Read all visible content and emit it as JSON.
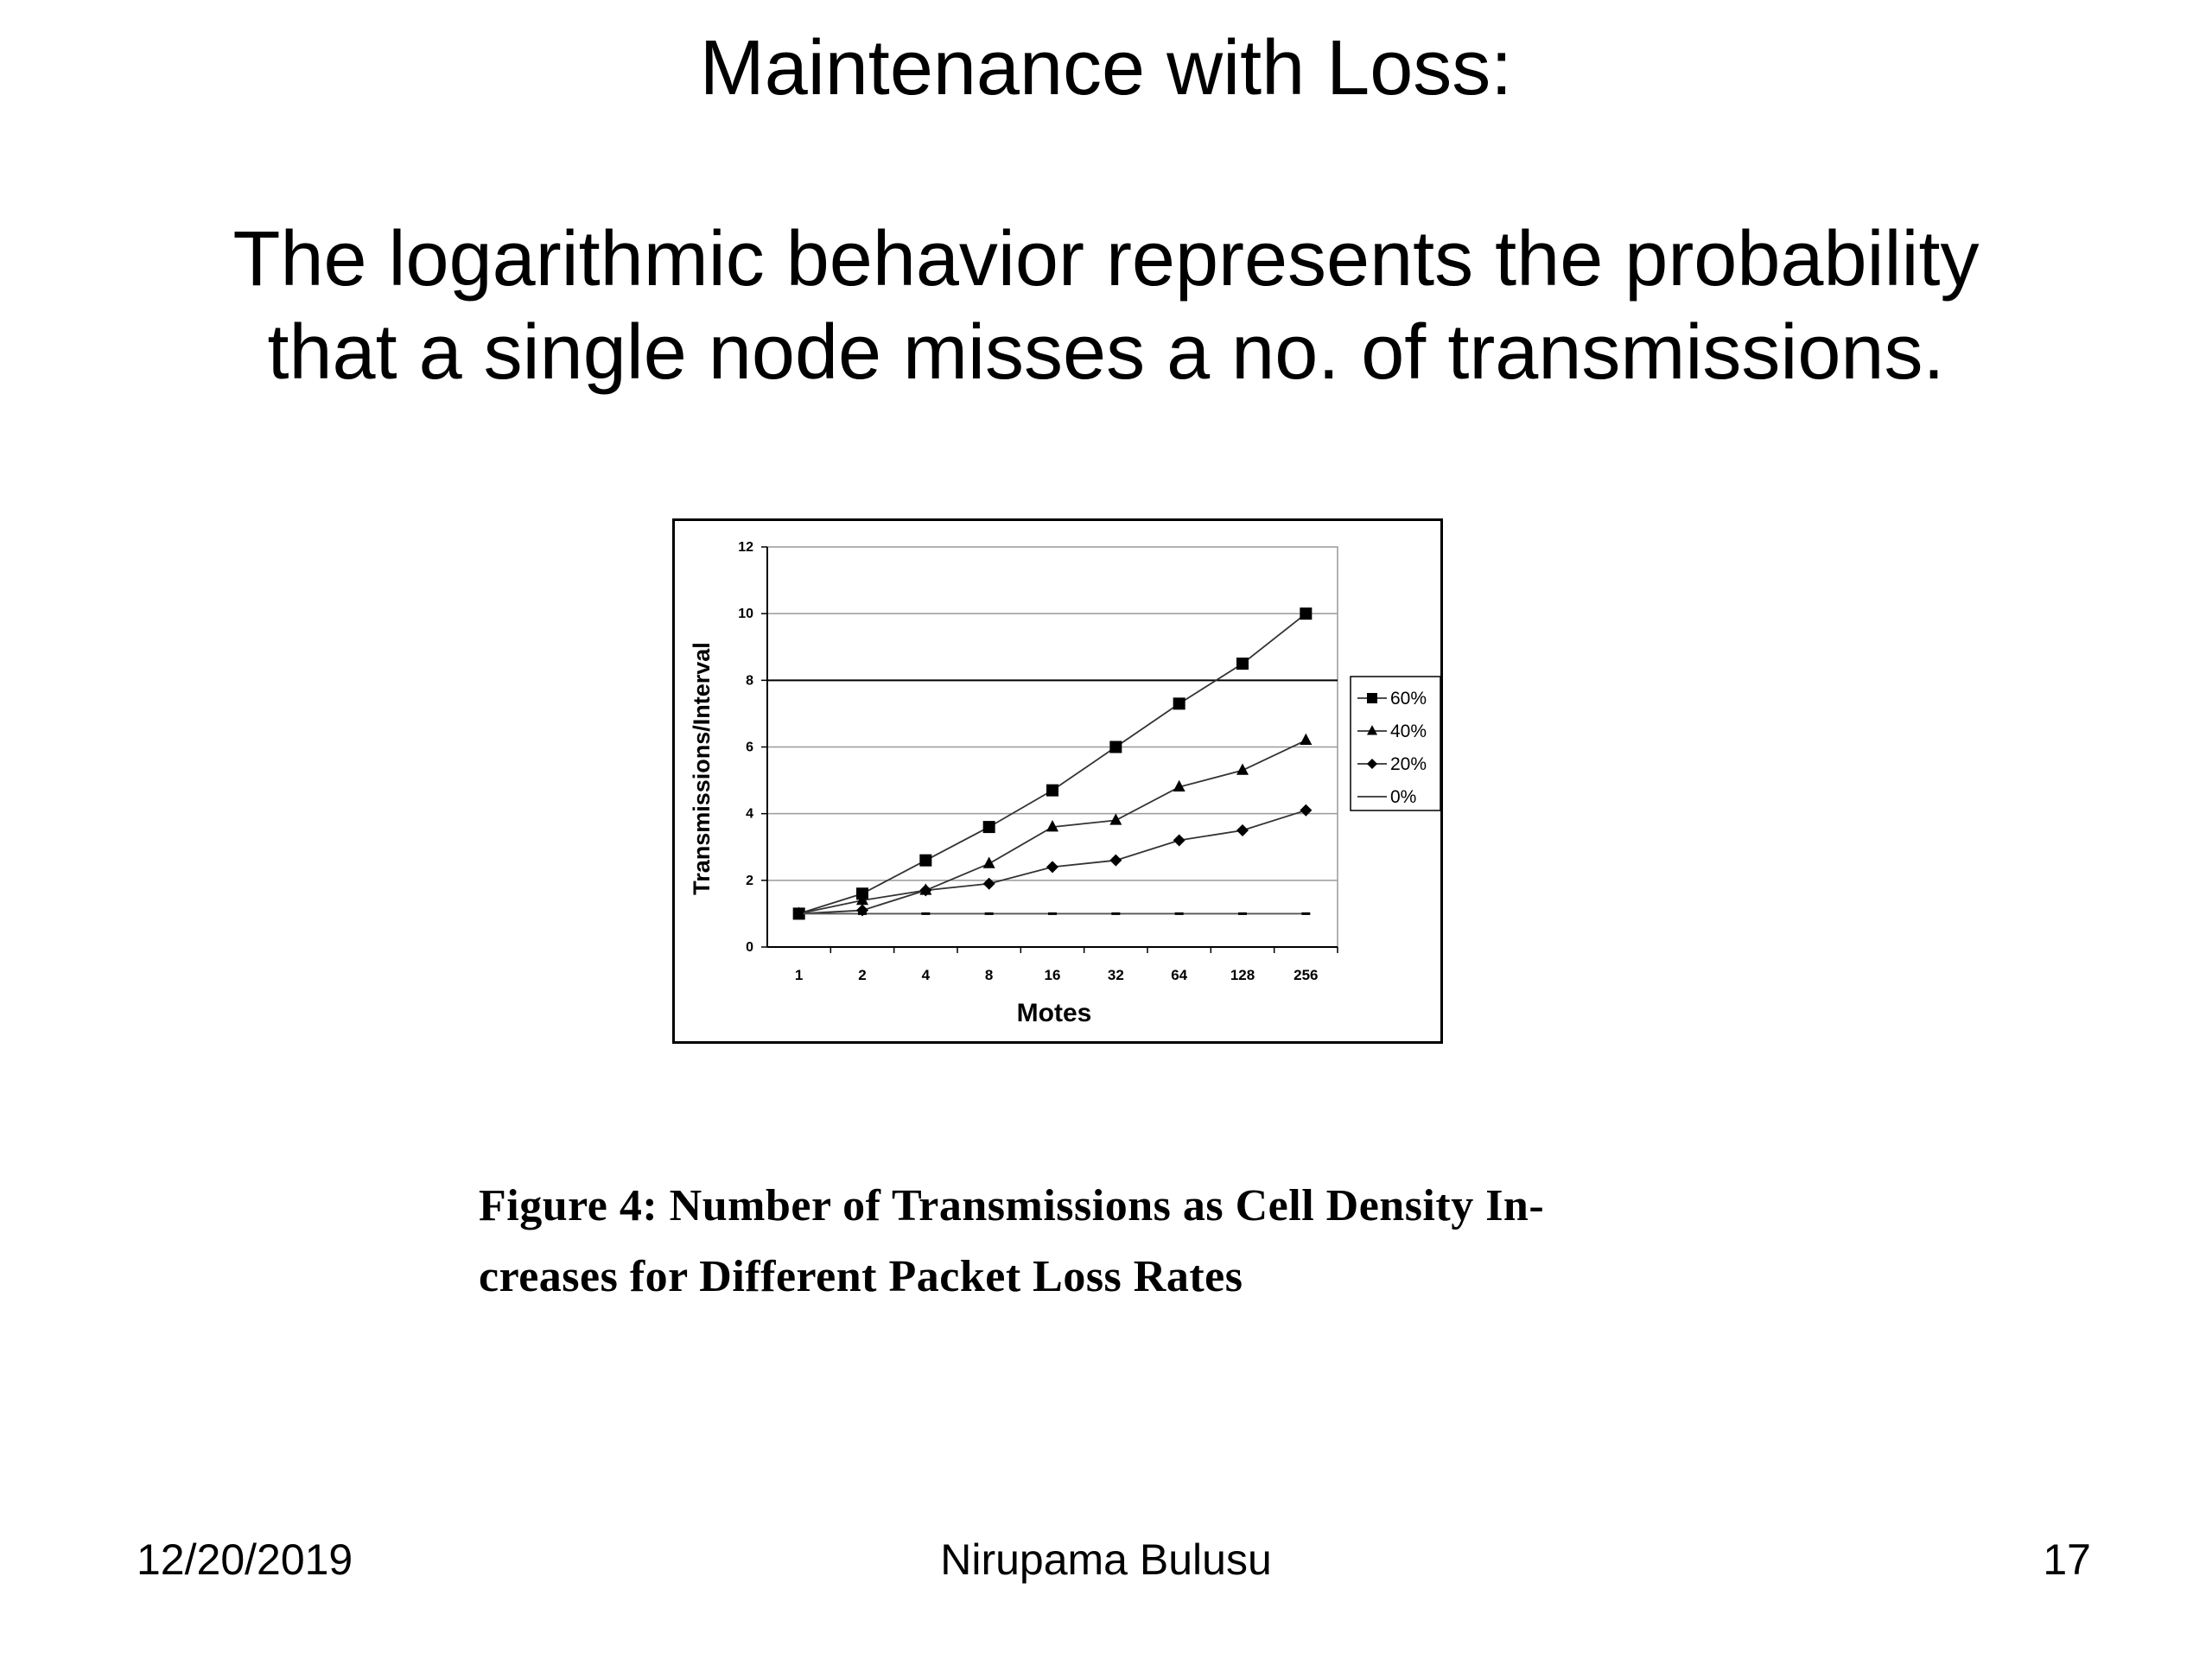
{
  "slide": {
    "title": "Maintenance with Loss:",
    "body_lines": [
      "The logarithmic behavior represents the probability",
      "that a single node misses a no. of transmissions."
    ]
  },
  "figure": {
    "caption_lines": [
      "Figure 4:  Number of Transmissions as Cell Density In-",
      "creases for Different Packet Loss Rates"
    ]
  },
  "chart_data": {
    "type": "line",
    "title": "",
    "xlabel": "Motes",
    "ylabel": "Transmissions/Interval",
    "categories": [
      "1",
      "2",
      "4",
      "8",
      "16",
      "32",
      "64",
      "128",
      "256"
    ],
    "ylim": [
      0,
      12
    ],
    "yticks": [
      0,
      2,
      4,
      6,
      8,
      10,
      12
    ],
    "grid": true,
    "legend_position": "right",
    "series": [
      {
        "name": "60%",
        "marker": "square",
        "values": [
          1.0,
          1.6,
          2.6,
          3.6,
          4.7,
          6.0,
          7.3,
          8.5,
          10.0
        ]
      },
      {
        "name": "40%",
        "marker": "triangle",
        "values": [
          1.0,
          1.4,
          1.7,
          2.5,
          3.6,
          3.8,
          4.8,
          5.3,
          6.2
        ]
      },
      {
        "name": "20%",
        "marker": "diamond",
        "values": [
          1.0,
          1.1,
          1.7,
          1.9,
          2.4,
          2.6,
          3.2,
          3.5,
          4.1
        ]
      },
      {
        "name": "0%",
        "marker": "none",
        "values": [
          1.0,
          1.0,
          1.0,
          1.0,
          1.0,
          1.0,
          1.0,
          1.0,
          1.0
        ]
      }
    ]
  },
  "footer": {
    "date": "12/20/2019",
    "author": "Nirupama Bulusu",
    "page": "17"
  }
}
